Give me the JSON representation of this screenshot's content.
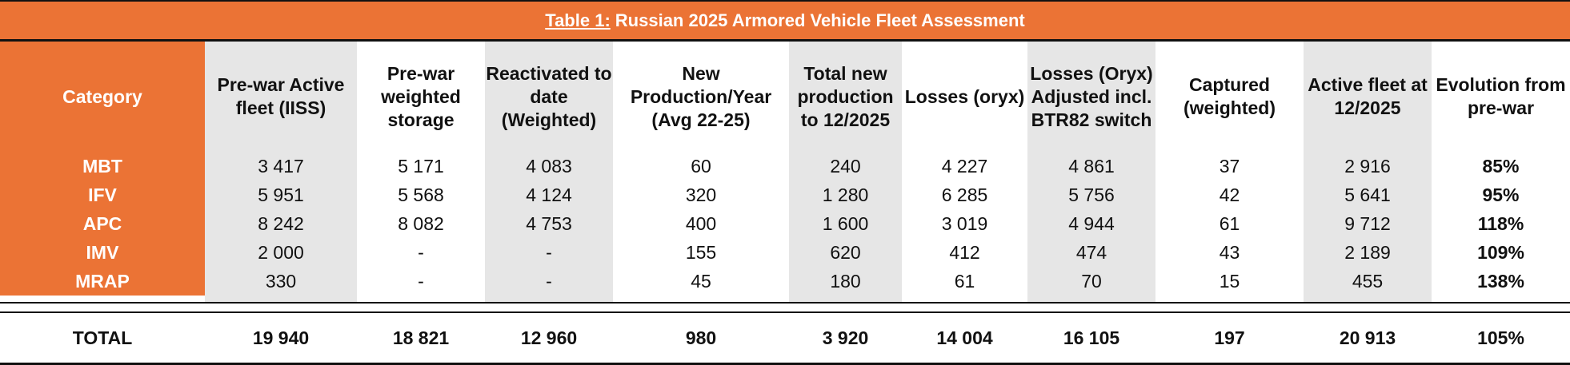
{
  "table": {
    "title_prefix": "Table 1:",
    "title_rest": "Russian 2025 Armored Vehicle Fleet Assessment",
    "headers": [
      "Category",
      "Pre-war Active fleet (IISS)",
      "Pre-war weighted storage",
      "Reactivated to date (Weighted)",
      "New Production/Year (Avg 22-25)",
      "Total new production to 12/2025",
      "Losses (oryx)",
      "Losses (Oryx) Adjusted incl. BTR82 switch",
      "Captured (weighted)",
      "Active fleet at 12/2025",
      "Evolution from pre-war"
    ],
    "rows": [
      [
        "MBT",
        "3 417",
        "5 171",
        "4 083",
        "60",
        "240",
        "4 227",
        "4 861",
        "37",
        "2 916",
        "85%"
      ],
      [
        "IFV",
        "5 951",
        "5 568",
        "4 124",
        "320",
        "1 280",
        "6 285",
        "5 756",
        "42",
        "5 641",
        "95%"
      ],
      [
        "APC",
        "8 242",
        "8 082",
        "4 753",
        "400",
        "1 600",
        "3 019",
        "4 944",
        "61",
        "9 712",
        "118%"
      ],
      [
        "IMV",
        "2 000",
        "-",
        "-",
        "155",
        "620",
        "412",
        "474",
        "43",
        "2 189",
        "109%"
      ],
      [
        "MRAP",
        "330",
        "-",
        "-",
        "45",
        "180",
        "61",
        "70",
        "15",
        "455",
        "138%"
      ]
    ],
    "total": [
      "TOTAL",
      "19 940",
      "18 821",
      "12 960",
      "980",
      "3 920",
      "14 004",
      "16 105",
      "197",
      "20 913",
      "105%"
    ]
  }
}
